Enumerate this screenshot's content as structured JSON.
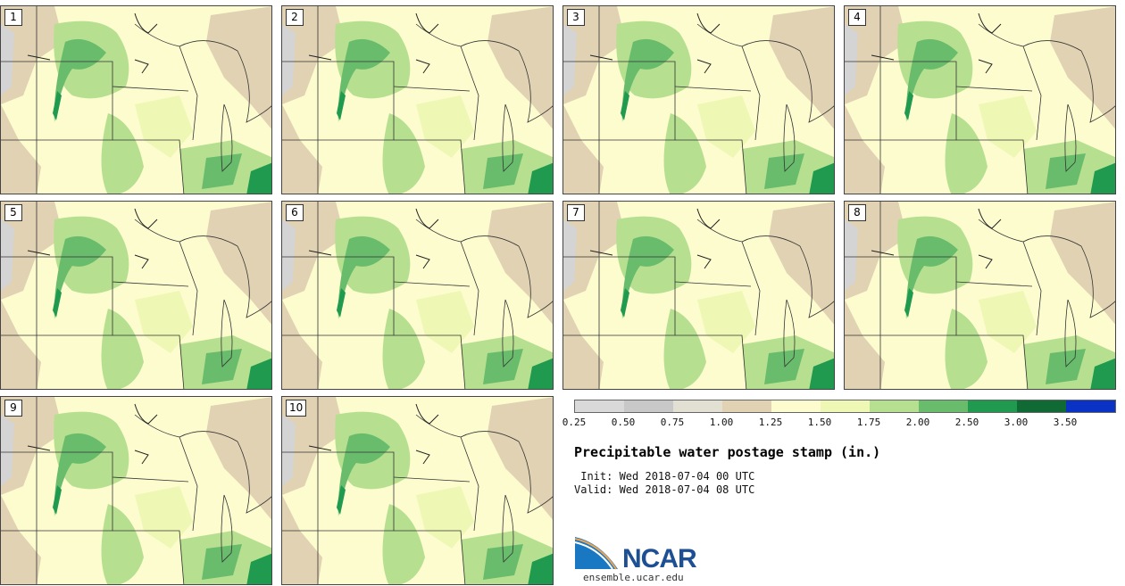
{
  "panels": [
    {
      "label": "1"
    },
    {
      "label": "2"
    },
    {
      "label": "3"
    },
    {
      "label": "4"
    },
    {
      "label": "5"
    },
    {
      "label": "6"
    },
    {
      "label": "7"
    },
    {
      "label": "8"
    },
    {
      "label": "9"
    },
    {
      "label": "10"
    }
  ],
  "colorbar": {
    "colors": [
      "#d9d9d9",
      "#c8c8c8",
      "#e2e0d2",
      "#e0d2b2",
      "#fdfccf",
      "#eef8b4",
      "#b6e090",
      "#68bc6c",
      "#1f9a4e",
      "#0f6b33",
      "#0a33c6"
    ],
    "ticks": [
      "0.25",
      "0.50",
      "0.75",
      "1.00",
      "1.25",
      "1.50",
      "1.75",
      "2.00",
      "2.50",
      "3.00",
      "3.50"
    ]
  },
  "title": "Precipitable water postage stamp (in.)",
  "init": " Init: Wed 2018-07-04 00 UTC",
  "valid": "Valid: Wed 2018-07-04 08 UTC",
  "logo": {
    "text": "NCAR",
    "url": "ensemble.ucar.edu"
  },
  "map_colors": {
    "dry": "#e0d2b2",
    "light": "#fdfccf",
    "mid": "#eef8b4",
    "moist": "#b6e090",
    "wet": "#68bc6c",
    "verywet": "#1f9a4e",
    "gray": "#d4d4d4"
  }
}
